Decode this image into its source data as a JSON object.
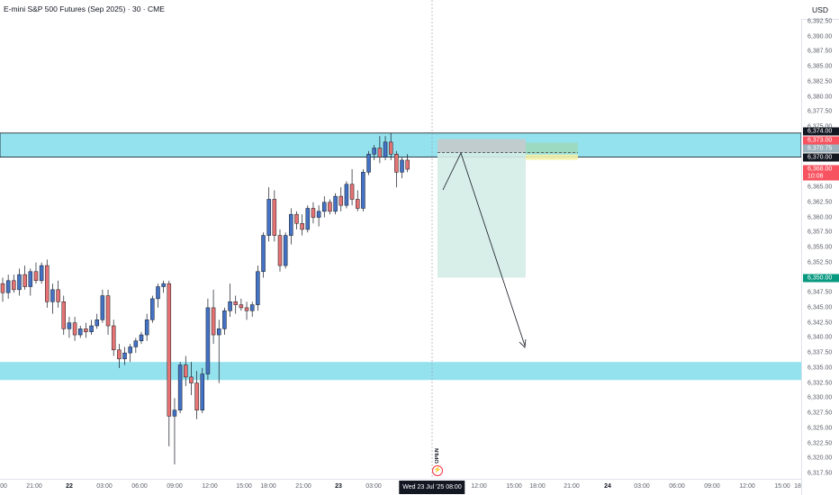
{
  "header": {
    "title": "E-mini S&P 500 Futures (Sep 2025) · 30 · CME"
  },
  "price_scale": {
    "currency": "USD",
    "labels": [
      "6,392.50",
      "6,390.00",
      "6,387.50",
      "6,385.00",
      "6,382.50",
      "6,380.00",
      "6,377.50",
      "6,375.00",
      "6,365.00",
      "6,362.50",
      "6,360.00",
      "6,357.50",
      "6,355.00",
      "6,352.50",
      "6,347.50",
      "6,345.00",
      "6,342.50",
      "6,340.00",
      "6,337.50",
      "6,335.00",
      "6,332.50",
      "6,330.00",
      "6,327.50",
      "6,325.00",
      "6,322.50",
      "6,320.00",
      "6,317.50"
    ],
    "tags": [
      {
        "text": "6,374.00",
        "color": "#131722"
      },
      {
        "text": "6,373.00",
        "color": "#f7525f"
      },
      {
        "text": "6,370.75",
        "color": "#9db2bd"
      },
      {
        "text": "6,370.00",
        "color": "#131722"
      },
      {
        "text": "6,368.00",
        "color": "#f7525f"
      },
      {
        "text": "10:08",
        "color": "#f7525f"
      },
      {
        "text": "6,350.00",
        "color": "#089981"
      }
    ]
  },
  "time_scale": {
    "labels": [
      {
        "text": "00",
        "bold": false
      },
      {
        "text": "21:00",
        "bold": false
      },
      {
        "text": "22",
        "bold": true
      },
      {
        "text": "03:00",
        "bold": false
      },
      {
        "text": "06:00",
        "bold": false
      },
      {
        "text": "09:00",
        "bold": false
      },
      {
        "text": "12:00",
        "bold": false
      },
      {
        "text": "15:00",
        "bold": false
      },
      {
        "text": "18:00",
        "bold": false
      },
      {
        "text": "21:00",
        "bold": false
      },
      {
        "text": "23",
        "bold": true
      },
      {
        "text": "03:00",
        "bold": false
      },
      {
        "text": "12:00",
        "bold": false
      },
      {
        "text": "15:00",
        "bold": false
      },
      {
        "text": "18:00",
        "bold": false
      },
      {
        "text": "21:00",
        "bold": false
      },
      {
        "text": "24",
        "bold": true
      },
      {
        "text": "03:00",
        "bold": false
      },
      {
        "text": "06:00",
        "bold": false
      },
      {
        "text": "09:00",
        "bold": false
      },
      {
        "text": "12:00",
        "bold": false
      },
      {
        "text": "15:00",
        "bold": false
      },
      {
        "text": "18",
        "bold": false
      }
    ],
    "crosshair_label": "Wed 23 Jul '25   08:00"
  },
  "markers": {
    "open_text": "OPEN",
    "bolt_icon": "lightning-icon"
  },
  "colors": {
    "up": "#4472c4",
    "down": "#e57373",
    "zone": "#8fe0ee",
    "stop_zone": "#c8c8c8",
    "target_zone": "#d4ece5",
    "target_zone_right": "#9ed9b8"
  },
  "chart_data": {
    "type": "candlestick",
    "symbol": "E-mini S&P 500 Futures (Sep 2025)",
    "interval": "30",
    "exchange": "CME",
    "price_range": [
      6316,
      6396
    ],
    "zones": [
      {
        "from": 6370.0,
        "to": 6374.0
      },
      {
        "from": 6333.0,
        "to": 6336.0
      }
    ],
    "position": {
      "side": "short",
      "entry": 6370.75,
      "stop": 6373.0,
      "target": 6350.0
    },
    "last_price": 6368.0,
    "candles": [
      {
        "o": 6349.0,
        "h": 6350.0,
        "l": 6346.0,
        "c": 6347.5
      },
      {
        "o": 6347.5,
        "h": 6350.5,
        "l": 6346.5,
        "c": 6349.5
      },
      {
        "o": 6349.5,
        "h": 6350.5,
        "l": 6347.5,
        "c": 6348.0
      },
      {
        "o": 6348.0,
        "h": 6351.5,
        "l": 6347.0,
        "c": 6350.5
      },
      {
        "o": 6350.5,
        "h": 6352.0,
        "l": 6348.0,
        "c": 6348.5
      },
      {
        "o": 6348.5,
        "h": 6351.5,
        "l": 6347.0,
        "c": 6351.0
      },
      {
        "o": 6351.0,
        "h": 6352.5,
        "l": 6349.0,
        "c": 6349.5
      },
      {
        "o": 6349.5,
        "h": 6352.5,
        "l": 6349.0,
        "c": 6352.0
      },
      {
        "o": 6352.0,
        "h": 6353.0,
        "l": 6345.0,
        "c": 6346.0
      },
      {
        "o": 6346.0,
        "h": 6349.0,
        "l": 6344.0,
        "c": 6348.0
      },
      {
        "o": 6348.0,
        "h": 6349.5,
        "l": 6345.0,
        "c": 6346.0
      },
      {
        "o": 6346.0,
        "h": 6347.0,
        "l": 6340.5,
        "c": 6341.5
      },
      {
        "o": 6341.5,
        "h": 6343.5,
        "l": 6340.0,
        "c": 6342.5
      },
      {
        "o": 6342.5,
        "h": 6343.5,
        "l": 6339.5,
        "c": 6340.5
      },
      {
        "o": 6340.5,
        "h": 6342.0,
        "l": 6340.0,
        "c": 6341.5
      },
      {
        "o": 6341.5,
        "h": 6342.5,
        "l": 6340.0,
        "c": 6341.0
      },
      {
        "o": 6341.0,
        "h": 6343.0,
        "l": 6340.5,
        "c": 6342.0
      },
      {
        "o": 6342.0,
        "h": 6344.0,
        "l": 6341.5,
        "c": 6343.0
      },
      {
        "o": 6343.0,
        "h": 6348.0,
        "l": 6342.5,
        "c": 6347.0
      },
      {
        "o": 6347.0,
        "h": 6348.0,
        "l": 6340.5,
        "c": 6342.0
      },
      {
        "o": 6342.0,
        "h": 6343.0,
        "l": 6337.0,
        "c": 6338.0
      },
      {
        "o": 6338.0,
        "h": 6339.0,
        "l": 6335.0,
        "c": 6336.5
      },
      {
        "o": 6336.5,
        "h": 6338.5,
        "l": 6335.5,
        "c": 6337.5
      },
      {
        "o": 6337.5,
        "h": 6339.0,
        "l": 6336.0,
        "c": 6338.5
      },
      {
        "o": 6338.5,
        "h": 6340.0,
        "l": 6337.5,
        "c": 6339.5
      },
      {
        "o": 6339.5,
        "h": 6341.0,
        "l": 6339.0,
        "c": 6340.5
      },
      {
        "o": 6340.5,
        "h": 6344.0,
        "l": 6339.5,
        "c": 6343.0
      },
      {
        "o": 6343.0,
        "h": 6347.0,
        "l": 6342.5,
        "c": 6346.5
      },
      {
        "o": 6346.5,
        "h": 6349.0,
        "l": 6345.0,
        "c": 6348.5
      },
      {
        "o": 6348.5,
        "h": 6349.5,
        "l": 6347.5,
        "c": 6349.0
      },
      {
        "o": 6349.0,
        "h": 6349.5,
        "l": 6322.0,
        "c": 6327.0
      },
      {
        "o": 6327.0,
        "h": 6330.0,
        "l": 6319.0,
        "c": 6328.0
      },
      {
        "o": 6328.0,
        "h": 6336.0,
        "l": 6327.5,
        "c": 6335.5
      },
      {
        "o": 6335.5,
        "h": 6337.0,
        "l": 6332.0,
        "c": 6333.5
      },
      {
        "o": 6333.5,
        "h": 6336.0,
        "l": 6330.5,
        "c": 6332.5
      },
      {
        "o": 6332.5,
        "h": 6334.5,
        "l": 6326.5,
        "c": 6328.0
      },
      {
        "o": 6328.0,
        "h": 6335.0,
        "l": 6327.5,
        "c": 6334.0
      },
      {
        "o": 6334.0,
        "h": 6346.5,
        "l": 6333.0,
        "c": 6345.0
      },
      {
        "o": 6345.0,
        "h": 6348.0,
        "l": 6339.0,
        "c": 6340.5
      },
      {
        "o": 6340.5,
        "h": 6343.0,
        "l": 6332.5,
        "c": 6341.5
      },
      {
        "o": 6341.5,
        "h": 6345.0,
        "l": 6340.5,
        "c": 6344.5
      },
      {
        "o": 6344.5,
        "h": 6349.0,
        "l": 6343.5,
        "c": 6346.0
      },
      {
        "o": 6346.0,
        "h": 6347.0,
        "l": 6344.0,
        "c": 6345.5
      },
      {
        "o": 6345.5,
        "h": 6346.5,
        "l": 6344.5,
        "c": 6345.0
      },
      {
        "o": 6345.0,
        "h": 6346.0,
        "l": 6343.0,
        "c": 6344.5
      },
      {
        "o": 6344.5,
        "h": 6346.0,
        "l": 6343.5,
        "c": 6345.5
      },
      {
        "o": 6345.5,
        "h": 6352.0,
        "l": 6344.5,
        "c": 6351.0
      },
      {
        "o": 6351.0,
        "h": 6357.5,
        "l": 6350.0,
        "c": 6357.0
      },
      {
        "o": 6357.0,
        "h": 6365.0,
        "l": 6356.0,
        "c": 6363.0
      },
      {
        "o": 6363.0,
        "h": 6364.5,
        "l": 6356.0,
        "c": 6357.0
      },
      {
        "o": 6357.0,
        "h": 6358.0,
        "l": 6351.0,
        "c": 6352.0
      },
      {
        "o": 6352.0,
        "h": 6357.5,
        "l": 6351.5,
        "c": 6357.0
      },
      {
        "o": 6357.0,
        "h": 6361.5,
        "l": 6355.5,
        "c": 6360.5
      },
      {
        "o": 6360.5,
        "h": 6361.0,
        "l": 6358.0,
        "c": 6359.0
      },
      {
        "o": 6359.0,
        "h": 6360.5,
        "l": 6357.0,
        "c": 6358.0
      },
      {
        "o": 6358.0,
        "h": 6362.0,
        "l": 6357.5,
        "c": 6361.5
      },
      {
        "o": 6361.5,
        "h": 6362.5,
        "l": 6359.0,
        "c": 6360.0
      },
      {
        "o": 6360.0,
        "h": 6362.0,
        "l": 6358.5,
        "c": 6361.0
      },
      {
        "o": 6361.0,
        "h": 6363.5,
        "l": 6360.0,
        "c": 6362.5
      },
      {
        "o": 6362.5,
        "h": 6363.0,
        "l": 6360.5,
        "c": 6361.0
      },
      {
        "o": 6361.0,
        "h": 6364.0,
        "l": 6360.5,
        "c": 6363.5
      },
      {
        "o": 6363.5,
        "h": 6365.0,
        "l": 6361.0,
        "c": 6362.0
      },
      {
        "o": 6362.0,
        "h": 6366.0,
        "l": 6361.5,
        "c": 6365.5
      },
      {
        "o": 6365.5,
        "h": 6368.0,
        "l": 6362.0,
        "c": 6363.0
      },
      {
        "o": 6363.0,
        "h": 6364.5,
        "l": 6361.0,
        "c": 6361.5
      },
      {
        "o": 6361.5,
        "h": 6368.0,
        "l": 6361.0,
        "c": 6367.5
      },
      {
        "o": 6367.5,
        "h": 6371.0,
        "l": 6367.0,
        "c": 6370.5
      },
      {
        "o": 6370.5,
        "h": 6372.0,
        "l": 6369.5,
        "c": 6371.5
      },
      {
        "o": 6371.5,
        "h": 6373.5,
        "l": 6369.0,
        "c": 6370.0
      },
      {
        "o": 6370.0,
        "h": 6373.5,
        "l": 6369.5,
        "c": 6372.5
      },
      {
        "o": 6372.5,
        "h": 6374.0,
        "l": 6369.5,
        "c": 6370.5
      },
      {
        "o": 6370.5,
        "h": 6371.0,
        "l": 6365.0,
        "c": 6367.5
      },
      {
        "o": 6367.5,
        "h": 6370.0,
        "l": 6366.5,
        "c": 6369.5
      },
      {
        "o": 6369.5,
        "h": 6370.5,
        "l": 6367.5,
        "c": 6368.0
      }
    ]
  }
}
